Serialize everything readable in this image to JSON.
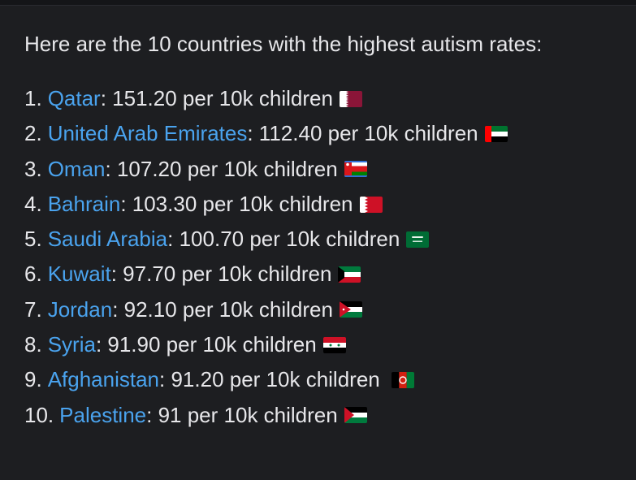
{
  "intro_text": "Here are the 10 countries with the highest autism rates:",
  "items": [
    {
      "number": "1.",
      "country": "Qatar",
      "rate_text": ": 151.20 per 10k children",
      "flag_icon": "qatar-flag-icon"
    },
    {
      "number": "2.",
      "country": "United Arab Emirates",
      "rate_text": ": 112.40 per 10k children",
      "flag_icon": "uae-flag-icon"
    },
    {
      "number": "3.",
      "country": "Oman",
      "rate_text": ": 107.20 per 10k children",
      "flag_icon": "oman-flag-icon"
    },
    {
      "number": "4.",
      "country": "Bahrain",
      "rate_text": ": 103.30 per 10k children",
      "flag_icon": "bahrain-flag-icon"
    },
    {
      "number": "5.",
      "country": "Saudi Arabia",
      "rate_text": ": 100.70 per 10k children",
      "flag_icon": "saudi-arabia-flag-icon"
    },
    {
      "number": "6.",
      "country": "Kuwait",
      "rate_text": ": 97.70 per 10k children",
      "flag_icon": "kuwait-flag-icon"
    },
    {
      "number": "7.",
      "country": "Jordan",
      "rate_text": ": 92.10 per 10k children",
      "flag_icon": "jordan-flag-icon"
    },
    {
      "number": "8.",
      "country": "Syria",
      "rate_text": ": 91.90 per 10k children",
      "flag_icon": "syria-flag-icon"
    },
    {
      "number": "9.",
      "country": "Afghanistan",
      "rate_text": ": 91.20 per 10k children",
      "flag_icon": "afghanistan-flag-icon"
    },
    {
      "number": "10.",
      "country": "Palestine",
      "rate_text": ": 91 per 10k children",
      "flag_icon": "palestine-flag-icon"
    }
  ],
  "colors": {
    "background": "#1d1e21",
    "text": "#e7e7ea",
    "link": "#4aa3ee"
  }
}
